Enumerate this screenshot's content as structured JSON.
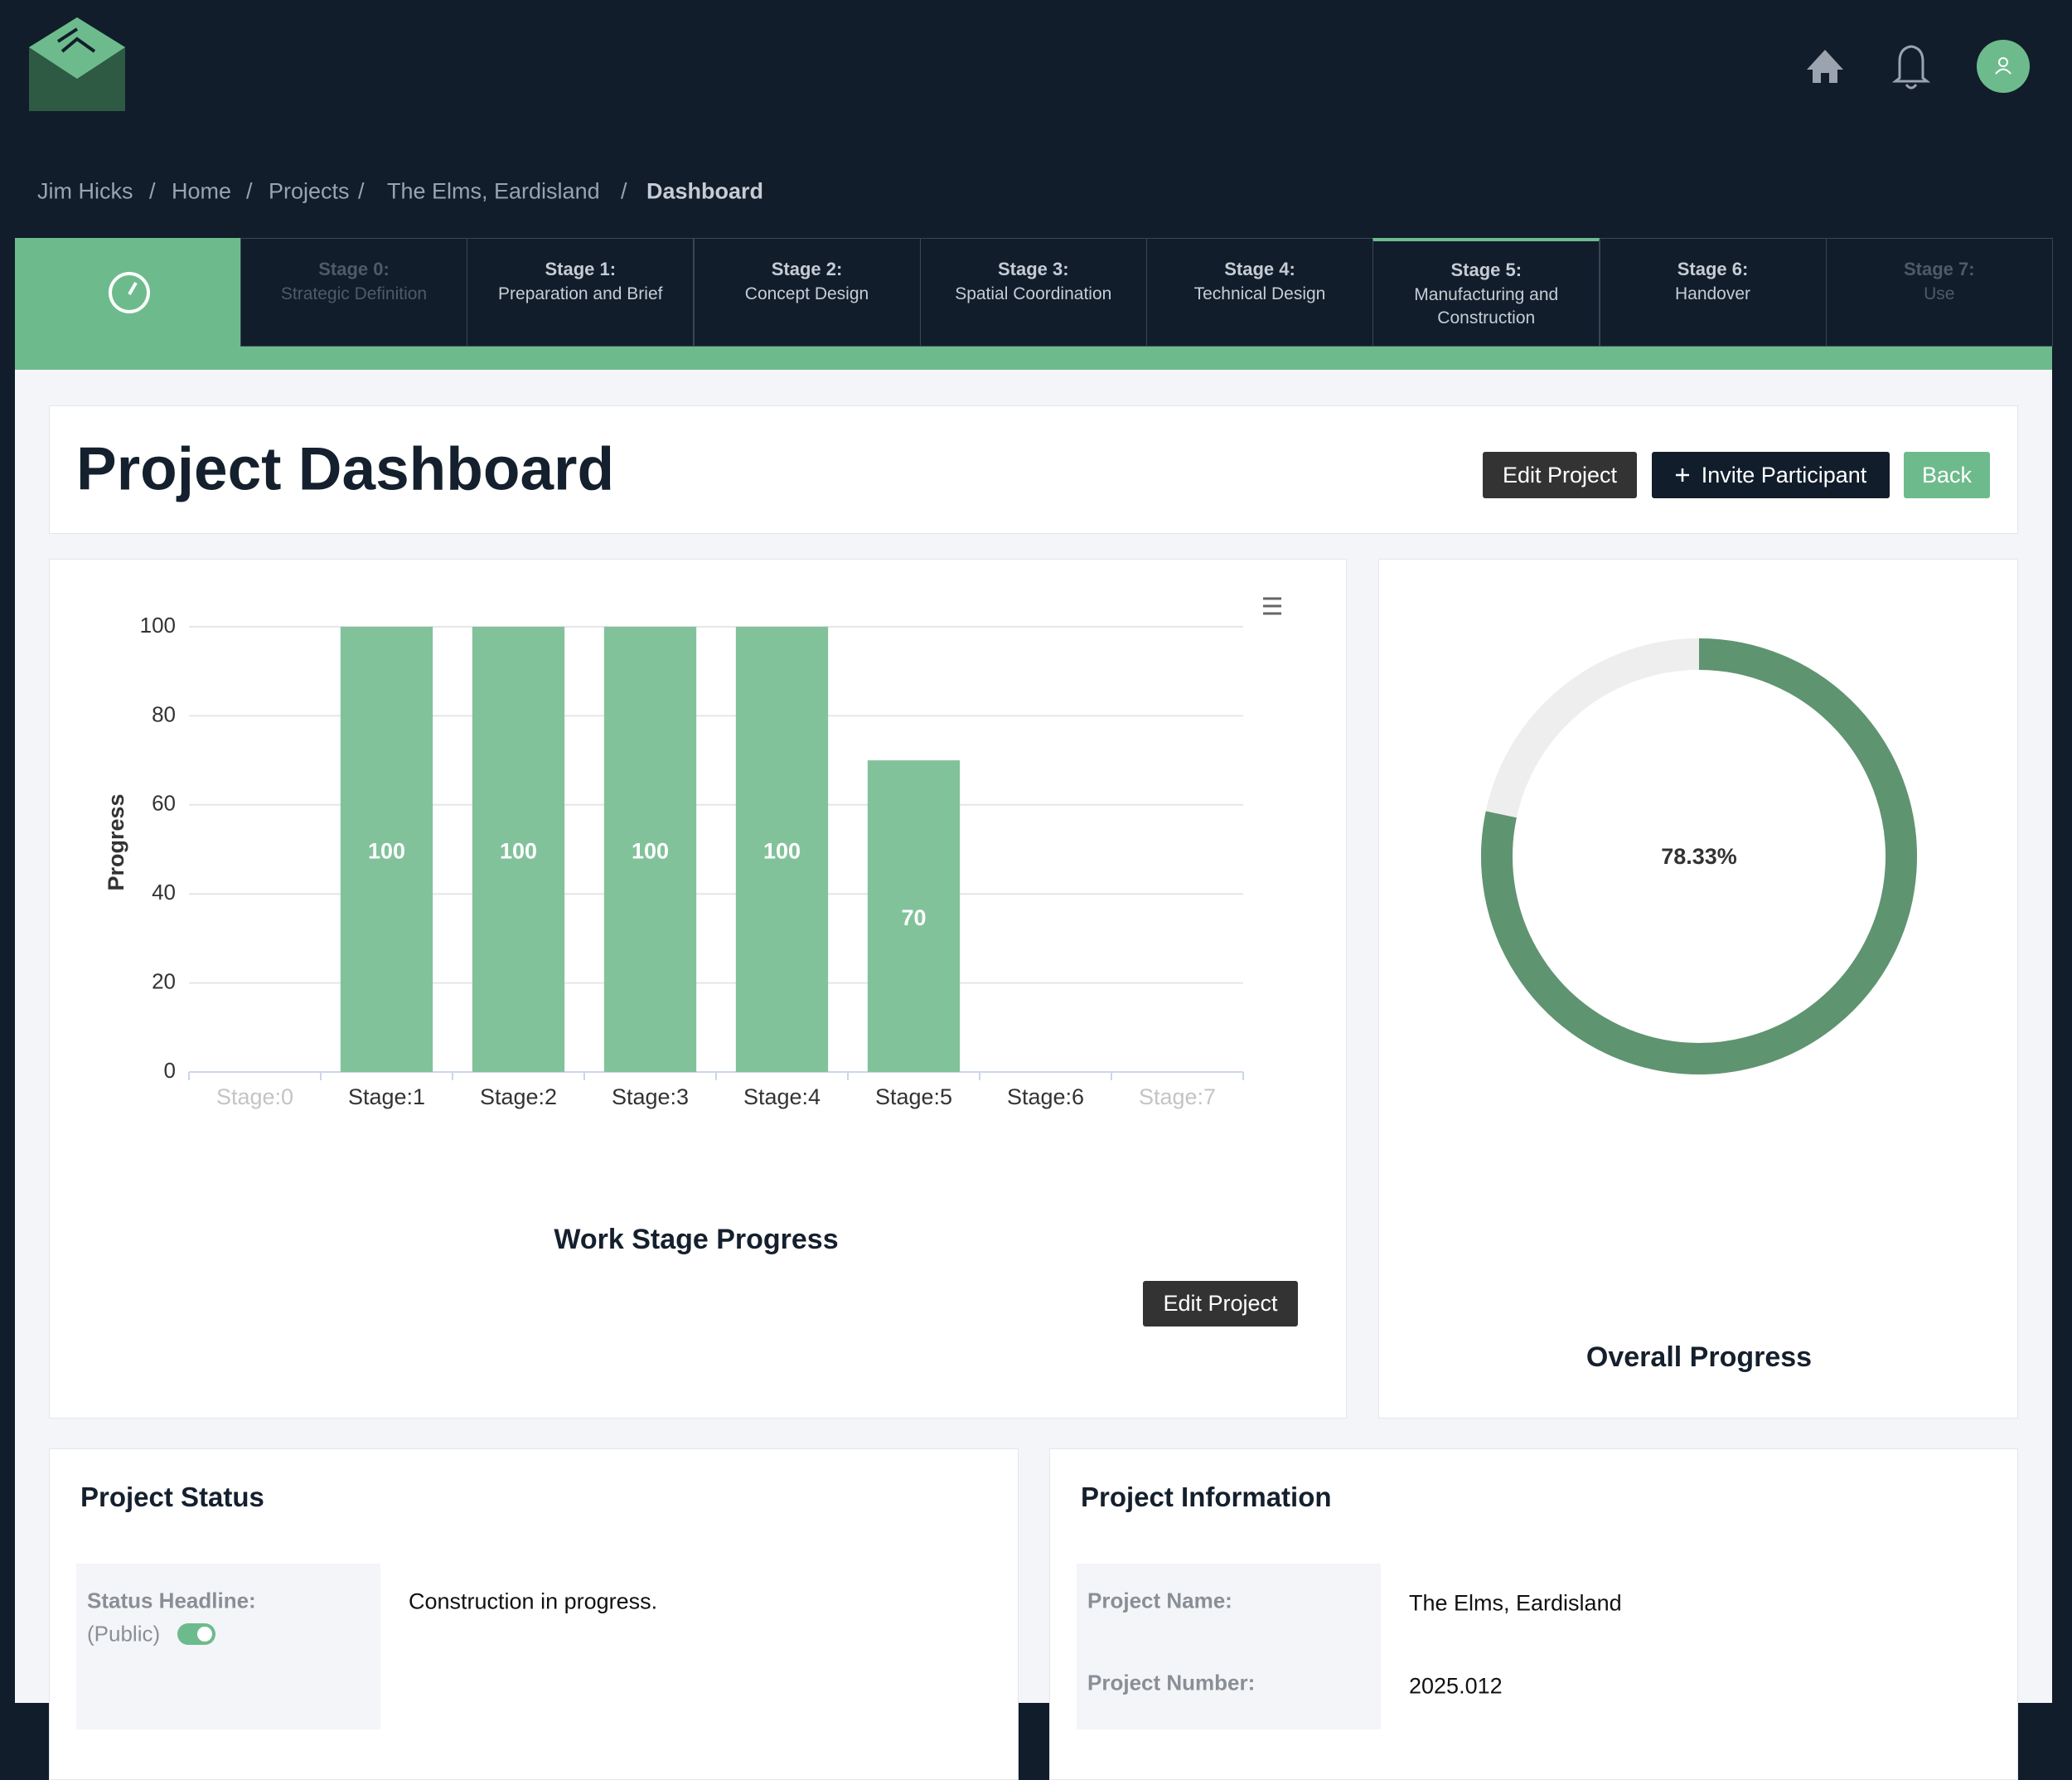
{
  "breadcrumb": {
    "items": [
      "Jim Hicks",
      "Home",
      "Projects",
      "The Elms, Eardisland",
      "Dashboard"
    ],
    "separator": "/"
  },
  "stages": [
    {
      "title": "Stage 0:",
      "subtitle": "Strategic Definition",
      "state": "inactive"
    },
    {
      "title": "Stage 1:",
      "subtitle": "Preparation and Brief",
      "state": "available"
    },
    {
      "title": "Stage 2:",
      "subtitle": "Concept Design",
      "state": "available"
    },
    {
      "title": "Stage 3:",
      "subtitle": "Spatial Coordination",
      "state": "available"
    },
    {
      "title": "Stage 4:",
      "subtitle": "Technical Design",
      "state": "available"
    },
    {
      "title": "Stage 5:",
      "subtitle": "Manufacturing and Construction",
      "state": "current"
    },
    {
      "title": "Stage 6:",
      "subtitle": "Handover",
      "state": "available"
    },
    {
      "title": "Stage 7:",
      "subtitle": "Use",
      "state": "inactive"
    }
  ],
  "page_title": "Project Dashboard",
  "buttons": {
    "edit_project": "Edit Project",
    "invite_participant": "Invite Participant",
    "back": "Back"
  },
  "chart_data": [
    {
      "type": "bar",
      "title": "Work Stage Progress",
      "y_label": "Progress",
      "categories": [
        "Stage:0",
        "Stage:1",
        "Stage:2",
        "Stage:3",
        "Stage:4",
        "Stage:5",
        "Stage:6",
        "Stage:7"
      ],
      "category_colors": [
        "#c4c4c4",
        "#333333",
        "#333333",
        "#333333",
        "#333333",
        "#333333",
        "#333333",
        "#c4c4c4"
      ],
      "values": [
        0,
        100,
        100,
        100,
        100,
        70,
        0,
        0
      ],
      "color": "#82c29b",
      "ylim": [
        0,
        100
      ],
      "yticks": [
        0,
        20,
        40,
        60,
        80,
        100
      ],
      "grid": true
    },
    {
      "type": "donut",
      "title": "Overall Progress",
      "values": [
        78.33
      ],
      "value_labels": [
        "78.33%"
      ],
      "color": "#5f9470",
      "track_color": "#eeeeee"
    }
  ],
  "project_status": {
    "title": "Project Status",
    "fields": [
      {
        "label": "Status Headline:",
        "note": "(Public)",
        "value": "Construction in progress."
      }
    ]
  },
  "project_information": {
    "title": "Project Information",
    "fields": [
      {
        "label": "Project Name:",
        "value": "The Elms, Eardisland"
      },
      {
        "label": "Project Number:",
        "value": "2025.012"
      }
    ]
  }
}
